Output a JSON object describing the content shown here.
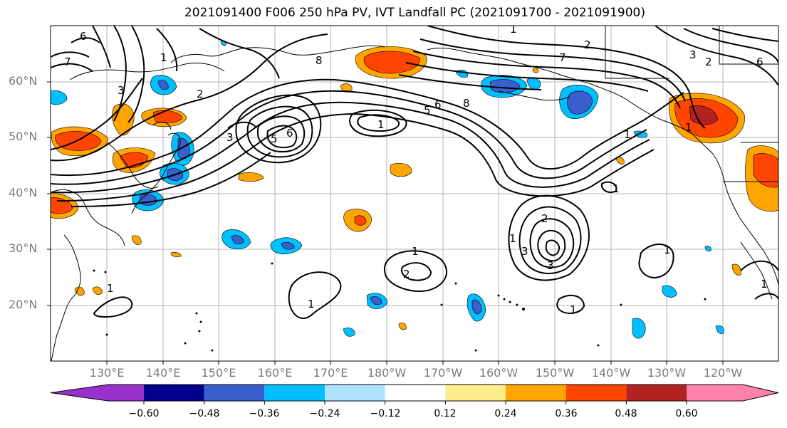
{
  "title": "2021091400 F006 250 hPa PV, IVT Landfall PC (2021091700 - 2021091900)",
  "map": {
    "lat_labels": [
      "60°N",
      "50°N",
      "40°N",
      "30°N",
      "20°N"
    ],
    "lon_labels": [
      "130°E",
      "140°E",
      "150°E",
      "160°E",
      "170°E",
      "180°W",
      "170°W",
      "160°W",
      "150°W",
      "140°W",
      "130°W",
      "120°W"
    ],
    "contour_labels": [
      "1",
      "2",
      "3",
      "5",
      "6",
      "7",
      "8"
    ],
    "positive_colors": [
      "#fff08c",
      "#ffa500",
      "#ff4500",
      "#b22222"
    ],
    "negative_colors": [
      "#b0e0ff",
      "#00bfff",
      "#3a5fcd",
      "#0000a0"
    ]
  },
  "colorbar": {
    "ticks": [
      "−0.60",
      "−0.48",
      "−0.36",
      "−0.24",
      "−0.12",
      "0.12",
      "0.24",
      "0.36",
      "0.48",
      "0.60"
    ],
    "colors": [
      "#9932cc",
      "#00008b",
      "#3a5fcd",
      "#00bfff",
      "#b0e2ff",
      "#ffffff",
      "#ffec8b",
      "#ffa500",
      "#ff4500",
      "#b22222",
      "#ff82ab"
    ]
  }
}
